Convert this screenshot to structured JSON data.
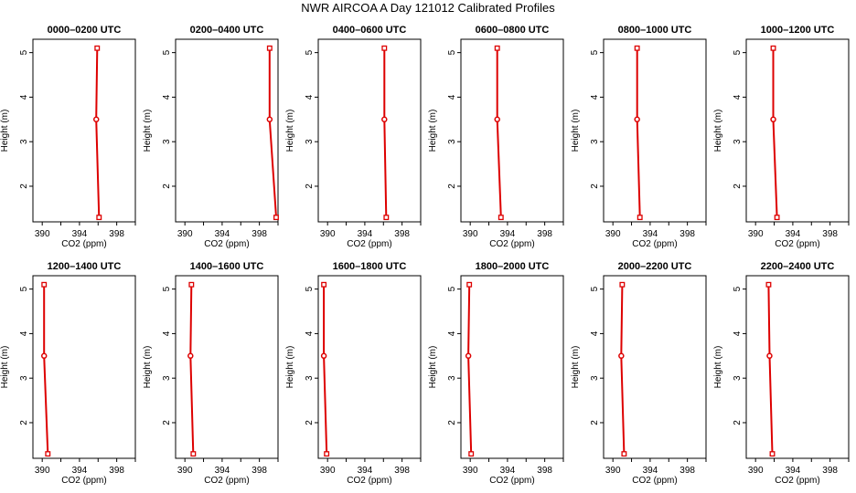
{
  "figure": {
    "title": "NWR AIRCOA A  Day 121012  Calibrated Profiles"
  },
  "chart_data": [
    {
      "type": "line",
      "title": "0000–0200 UTC",
      "xlabel": "CO2 (ppm)",
      "ylabel": "Height (m)",
      "xlim": [
        389,
        400
      ],
      "ylim": [
        1.2,
        5.3
      ],
      "xticks": [
        390,
        394,
        398
      ],
      "yticks": [
        2,
        3,
        4,
        5
      ],
      "grid": false,
      "series": [
        {
          "x": [
            395.9,
            395.8,
            396.1
          ],
          "y": [
            5.1,
            3.5,
            1.3
          ]
        }
      ]
    },
    {
      "type": "line",
      "title": "0200–0400 UTC",
      "xlabel": "CO2 (ppm)",
      "ylabel": "Height (m)",
      "xlim": [
        389,
        400
      ],
      "ylim": [
        1.2,
        5.3
      ],
      "xticks": [
        390,
        394,
        398
      ],
      "yticks": [
        2,
        3,
        4,
        5
      ],
      "grid": false,
      "series": [
        {
          "x": [
            399.1,
            399.1,
            399.8
          ],
          "y": [
            5.1,
            3.5,
            1.3
          ]
        }
      ]
    },
    {
      "type": "line",
      "title": "0400–0600 UTC",
      "xlabel": "CO2 (ppm)",
      "ylabel": "Height (m)",
      "xlim": [
        389,
        400
      ],
      "ylim": [
        1.2,
        5.3
      ],
      "xticks": [
        390,
        394,
        398
      ],
      "yticks": [
        2,
        3,
        4,
        5
      ],
      "grid": false,
      "series": [
        {
          "x": [
            396.1,
            396.1,
            396.3
          ],
          "y": [
            5.1,
            3.5,
            1.3
          ]
        }
      ]
    },
    {
      "type": "line",
      "title": "0600–0800 UTC",
      "xlabel": "CO2 (ppm)",
      "ylabel": "Height (m)",
      "xlim": [
        389,
        400
      ],
      "ylim": [
        1.2,
        5.3
      ],
      "xticks": [
        390,
        394,
        398
      ],
      "yticks": [
        2,
        3,
        4,
        5
      ],
      "grid": false,
      "series": [
        {
          "x": [
            392.9,
            392.9,
            393.3
          ],
          "y": [
            5.1,
            3.5,
            1.3
          ]
        }
      ]
    },
    {
      "type": "line",
      "title": "0800–1000 UTC",
      "xlabel": "CO2 (ppm)",
      "ylabel": "Height (m)",
      "xlim": [
        389,
        400
      ],
      "ylim": [
        1.2,
        5.3
      ],
      "xticks": [
        390,
        394,
        398
      ],
      "yticks": [
        2,
        3,
        4,
        5
      ],
      "grid": false,
      "series": [
        {
          "x": [
            392.6,
            392.6,
            392.9
          ],
          "y": [
            5.1,
            3.5,
            1.3
          ]
        }
      ]
    },
    {
      "type": "line",
      "title": "1000–1200 UTC",
      "xlabel": "CO2 (ppm)",
      "ylabel": "Height (m)",
      "xlim": [
        389,
        400
      ],
      "ylim": [
        1.2,
        5.3
      ],
      "xticks": [
        390,
        394,
        398
      ],
      "yticks": [
        2,
        3,
        4,
        5
      ],
      "grid": false,
      "series": [
        {
          "x": [
            391.9,
            391.9,
            392.3
          ],
          "y": [
            5.1,
            3.5,
            1.3
          ]
        }
      ]
    },
    {
      "type": "line",
      "title": "1200–1400 UTC",
      "xlabel": "CO2 (ppm)",
      "ylabel": "Height (m)",
      "xlim": [
        389,
        400
      ],
      "ylim": [
        1.2,
        5.3
      ],
      "xticks": [
        390,
        394,
        398
      ],
      "yticks": [
        2,
        3,
        4,
        5
      ],
      "grid": false,
      "series": [
        {
          "x": [
            390.2,
            390.2,
            390.6
          ],
          "y": [
            5.1,
            3.5,
            1.3
          ]
        }
      ]
    },
    {
      "type": "line",
      "title": "1400–1600 UTC",
      "xlabel": "CO2 (ppm)",
      "ylabel": "Height (m)",
      "xlim": [
        389,
        400
      ],
      "ylim": [
        1.2,
        5.3
      ],
      "xticks": [
        390,
        394,
        398
      ],
      "yticks": [
        2,
        3,
        4,
        5
      ],
      "grid": false,
      "series": [
        {
          "x": [
            390.7,
            390.6,
            390.9
          ],
          "y": [
            5.1,
            3.5,
            1.3
          ]
        }
      ]
    },
    {
      "type": "line",
      "title": "1600–1800 UTC",
      "xlabel": "CO2 (ppm)",
      "ylabel": "Height (m)",
      "xlim": [
        389,
        400
      ],
      "ylim": [
        1.2,
        5.3
      ],
      "xticks": [
        390,
        394,
        398
      ],
      "yticks": [
        2,
        3,
        4,
        5
      ],
      "grid": false,
      "series": [
        {
          "x": [
            389.6,
            389.6,
            389.9
          ],
          "y": [
            5.1,
            3.5,
            1.3
          ]
        }
      ]
    },
    {
      "type": "line",
      "title": "1800–2000 UTC",
      "xlabel": "CO2 (ppm)",
      "ylabel": "Height (m)",
      "xlim": [
        389,
        400
      ],
      "ylim": [
        1.2,
        5.3
      ],
      "xticks": [
        390,
        394,
        398
      ],
      "yticks": [
        2,
        3,
        4,
        5
      ],
      "grid": false,
      "series": [
        {
          "x": [
            389.9,
            389.8,
            390.1
          ],
          "y": [
            5.1,
            3.5,
            1.3
          ]
        }
      ]
    },
    {
      "type": "line",
      "title": "2000–2200 UTC",
      "xlabel": "CO2 (ppm)",
      "ylabel": "Height (m)",
      "xlim": [
        389,
        400
      ],
      "ylim": [
        1.2,
        5.3
      ],
      "xticks": [
        390,
        394,
        398
      ],
      "yticks": [
        2,
        3,
        4,
        5
      ],
      "grid": false,
      "series": [
        {
          "x": [
            391.0,
            390.9,
            391.2
          ],
          "y": [
            5.1,
            3.5,
            1.3
          ]
        }
      ]
    },
    {
      "type": "line",
      "title": "2200–2400 UTC",
      "xlabel": "CO2 (ppm)",
      "ylabel": "Height (m)",
      "xlim": [
        389,
        400
      ],
      "ylim": [
        1.2,
        5.3
      ],
      "xticks": [
        390,
        394,
        398
      ],
      "yticks": [
        2,
        3,
        4,
        5
      ],
      "grid": false,
      "series": [
        {
          "x": [
            391.4,
            391.5,
            391.8
          ],
          "y": [
            5.1,
            3.5,
            1.3
          ]
        }
      ]
    }
  ],
  "colors": {
    "series_line": "#dd0000",
    "axis": "#000000",
    "background": "#ffffff"
  }
}
